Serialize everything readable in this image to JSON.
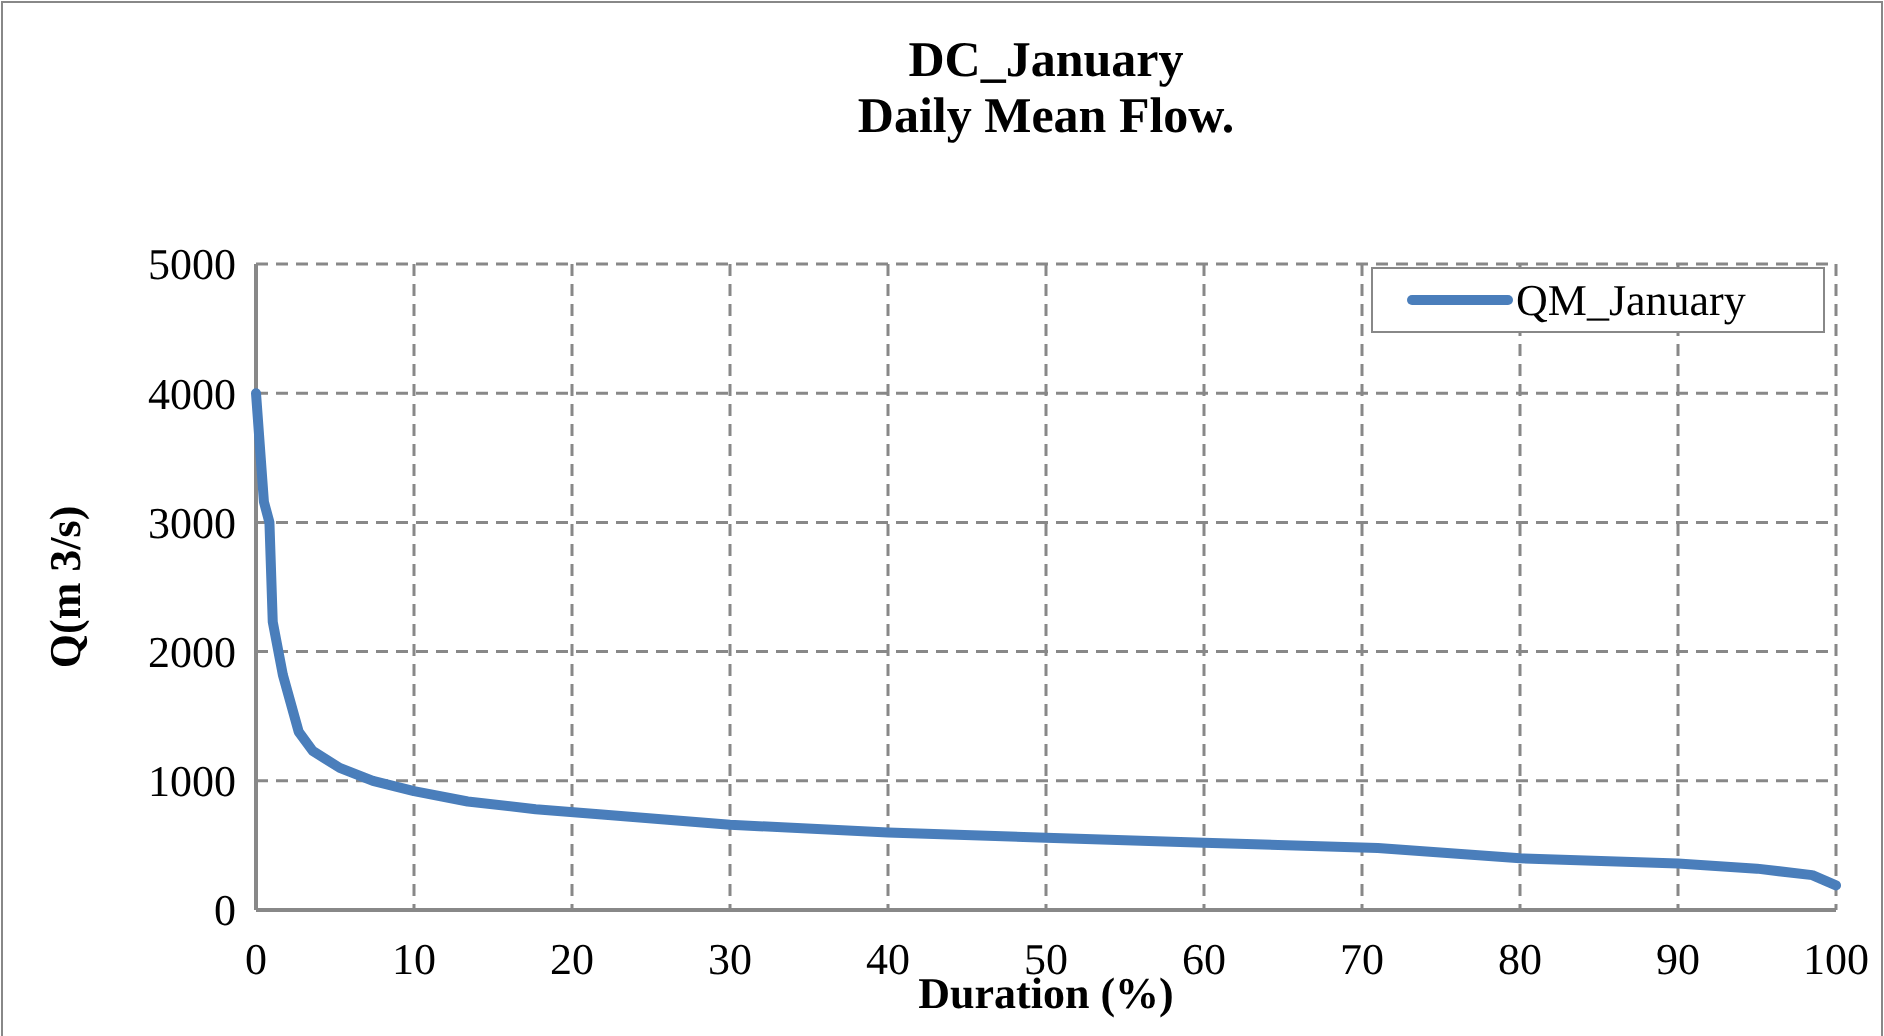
{
  "chart_data": {
    "type": "line",
    "title": "DC_January\nDaily Mean Flow.",
    "xlabel": "Duration (%)",
    "ylabel": "Q(m 3/s)",
    "xlim": [
      0,
      100
    ],
    "xticks": [
      0,
      10,
      20,
      30,
      40,
      50,
      60,
      70,
      80,
      90,
      100
    ],
    "ylim": [
      0,
      5000
    ],
    "yticks": [
      0,
      1000,
      2000,
      3000,
      4000,
      5000
    ],
    "grid": true,
    "legend": "top right",
    "marker": "none",
    "line_style": "solid",
    "series": [
      {
        "name": "QM_January",
        "color": "#4a7ebb",
        "x": [
          0,
          0.5,
          0.85,
          1.06,
          1.7,
          2.7,
          3.6,
          5.3,
          7.4,
          10,
          13.4,
          17.7,
          21.9,
          30,
          40,
          50,
          60,
          71,
          80,
          90,
          95,
          98.5,
          100
        ],
        "values": [
          4000,
          3160,
          3000,
          2230,
          1820,
          1380,
          1230,
          1100,
          1000,
          920,
          840,
          780,
          740,
          660,
          600,
          560,
          520,
          480,
          400,
          360,
          320,
          270,
          190
        ]
      }
    ]
  }
}
